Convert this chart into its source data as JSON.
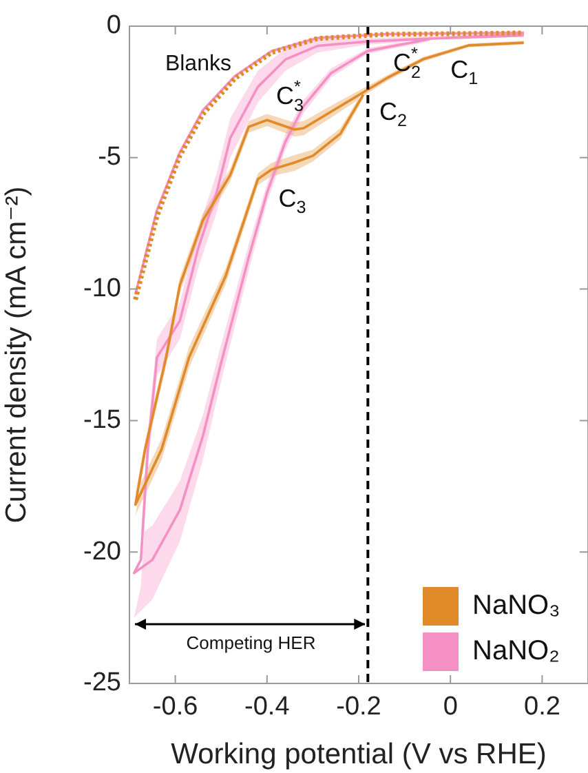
{
  "chart_data": {
    "type": "line",
    "xlabel": "Working potential (V vs RHE)",
    "ylabel": "Current density (mA cm⁻²)",
    "xlim": [
      -0.7,
      0.3
    ],
    "xticks": [
      -0.6,
      -0.4,
      -0.2,
      0,
      0.2
    ],
    "ylim": [
      -25,
      0
    ],
    "yticks": [
      0,
      -5,
      -10,
      -15,
      -20,
      -25
    ],
    "grid": false,
    "legend": "bottom right",
    "marker": "none",
    "series": [
      {
        "color": "#e08a2a",
        "line_style": "dotted",
        "x": [
          -0.687,
          -0.64,
          -0.59,
          -0.54,
          -0.47,
          -0.39,
          -0.29,
          -0.14,
          0.16
        ],
        "values": [
          -10.4,
          -7.23,
          -4.93,
          -3.35,
          -1.99,
          -1.0,
          -0.47,
          -0.31,
          -0.26
        ]
      },
      {
        "color": "#f590c5",
        "x": [
          -0.687,
          -0.64,
          -0.59,
          -0.54,
          -0.47,
          -0.39,
          -0.29,
          -0.14,
          0.16
        ],
        "values": [
          -10.2,
          -7.0,
          -4.8,
          -3.2,
          -1.9,
          -0.95,
          -0.45,
          -0.3,
          -0.25
        ]
      },
      {
        "name": "NaNO₃",
        "color": "#e08a2a",
        "x": [
          0.16,
          0.04,
          -0.06,
          -0.14,
          -0.18,
          -0.24,
          -0.32,
          -0.34,
          -0.4,
          -0.44,
          -0.48,
          -0.54,
          -0.59,
          -0.62,
          -0.666,
          -0.687,
          -0.63,
          -0.57,
          -0.49,
          -0.42,
          -0.39,
          -0.34,
          -0.3,
          -0.24,
          -0.19
        ],
        "values": [
          -0.63,
          -0.73,
          -1.26,
          -1.99,
          -2.41,
          -3.04,
          -3.88,
          -3.93,
          -3.57,
          -3.83,
          -5.66,
          -7.39,
          -9.85,
          -12.6,
          -16.1,
          -18.2,
          -16.1,
          -12.6,
          -9.49,
          -5.82,
          -5.45,
          -5.19,
          -4.93,
          -4.09,
          -2.6
        ],
        "lower": [
          -0.7,
          -0.8,
          -1.35,
          -2.1,
          -2.55,
          -3.25,
          -4.15,
          -4.2,
          -3.8,
          -4.05,
          -5.9,
          -7.65,
          -10.15,
          -12.9,
          -16.4,
          -18.6,
          -16.5,
          -13.0,
          -9.8,
          -6.05,
          -5.7,
          -5.5,
          -5.15,
          -4.3,
          -2.75
        ],
        "upper": [
          -0.56,
          -0.66,
          -1.17,
          -1.88,
          -2.27,
          -2.83,
          -3.61,
          -3.66,
          -3.34,
          -3.61,
          -5.42,
          -7.13,
          -9.55,
          -12.3,
          -15.8,
          -17.8,
          -15.7,
          -12.2,
          -9.2,
          -5.6,
          -5.2,
          -4.9,
          -4.7,
          -3.88,
          -2.45
        ]
      },
      {
        "name": "NaNO₂",
        "color": "#f590c5",
        "x": [
          0.16,
          -0.18,
          -0.29,
          -0.36,
          -0.42,
          -0.48,
          -0.51,
          -0.55,
          -0.59,
          -0.64,
          -0.66,
          -0.675,
          -0.69,
          -0.65,
          -0.59,
          -0.54,
          -0.5,
          -0.44,
          -0.4,
          -0.36,
          -0.32,
          -0.26,
          -0.18,
          -0.04,
          0.16
        ],
        "values": [
          -0.31,
          -0.58,
          -0.75,
          -1.27,
          -2.31,
          -4.25,
          -6.34,
          -8.44,
          -11.2,
          -12.6,
          -16.1,
          -20.3,
          -20.8,
          -20.3,
          -18.4,
          -15.6,
          -12.8,
          -8.8,
          -6.34,
          -4.4,
          -3.04,
          -1.78,
          -0.94,
          -0.47,
          -0.35
        ],
        "lower": [
          -0.35,
          -0.7,
          -1.0,
          -1.7,
          -2.9,
          -5.0,
          -7.1,
          -9.2,
          -11.9,
          -13.3,
          -16.8,
          -21.3,
          -22.5,
          -21.8,
          -19.6,
          -16.5,
          -13.5,
          -9.3,
          -6.7,
          -4.7,
          -3.3,
          -1.95,
          -1.05,
          -0.55,
          -0.4
        ],
        "upper": [
          -0.27,
          -0.46,
          -0.5,
          -0.85,
          -1.7,
          -3.5,
          -5.6,
          -7.7,
          -10.5,
          -11.9,
          -15.4,
          -19.3,
          -19.5,
          -19.0,
          -17.3,
          -14.8,
          -12.1,
          -8.3,
          -6.0,
          -4.1,
          -2.8,
          -1.6,
          -0.83,
          -0.4,
          -0.3
        ]
      }
    ],
    "ref_lines": [
      {
        "axis": "x",
        "value": -0.18,
        "color": "#000000",
        "line_style": "dashed"
      }
    ],
    "annotations": [
      "Blanks",
      "C$_{2}$$^{*}$",
      "C$_{1}$",
      "C$_{2}$",
      "C$_{3}$$^{*}$",
      "C$_{3}$",
      "Competing HER"
    ]
  }
}
